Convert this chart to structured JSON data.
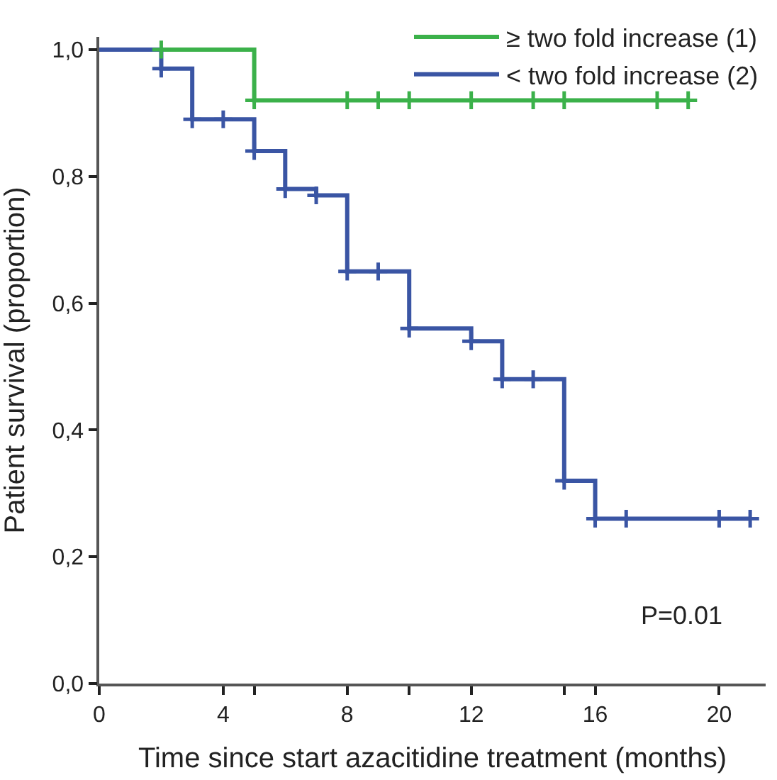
{
  "chart_data": {
    "type": "step",
    "xlabel": "Time since start azacitidine treatment (months)",
    "ylabel": "Patient survival (proportion)",
    "series": [
      {
        "name": "≥ two fold increase (1)",
        "marker": "none",
        "color": "#3bb14a",
        "x": [
          0,
          5,
          19
        ],
        "values": [
          1.0,
          0.92,
          0.92
        ]
      },
      {
        "name": "< two fold increase (2)",
        "marker": "none",
        "color": "#3a55a4",
        "x": [
          0,
          2,
          3,
          5,
          6,
          7,
          8,
          10,
          12,
          13,
          15,
          16,
          21
        ],
        "values": [
          1.0,
          0.97,
          0.89,
          0.84,
          0.78,
          0.77,
          0.65,
          0.56,
          0.54,
          0.48,
          0.32,
          0.26,
          0.26
        ]
      },
      {
        "type": "scatter",
        "marker": "cross",
        "color": "#3bb14a",
        "x": [
          2,
          5,
          8,
          9,
          10,
          12,
          14,
          15,
          18,
          19
        ],
        "values": [
          1.0,
          0.92,
          0.92,
          0.92,
          0.92,
          0.92,
          0.92,
          0.92,
          0.92,
          0.92
        ]
      },
      {
        "type": "scatter",
        "marker": "cross",
        "color": "#3a55a4",
        "x": [
          2,
          3,
          4,
          5,
          6,
          7,
          8,
          9,
          10,
          12,
          13,
          14,
          15,
          16,
          17,
          20,
          21
        ],
        "values": [
          0.97,
          0.89,
          0.89,
          0.84,
          0.78,
          0.77,
          0.65,
          0.65,
          0.56,
          0.54,
          0.48,
          0.48,
          0.32,
          0.26,
          0.26,
          0.26,
          0.26
        ]
      }
    ],
    "xlim": [
      0,
      21.5
    ],
    "xticks": [
      0,
      4,
      8,
      12,
      16,
      20,
      {
        "value": 5,
        "label": null
      },
      {
        "value": 10,
        "label": null
      },
      {
        "value": 15,
        "label": null
      }
    ],
    "ylim": [
      0,
      1.02
    ],
    "yticks": [
      {
        "value": 0,
        "label": "0,0"
      },
      {
        "value": 0.2,
        "label": "0,2"
      },
      {
        "value": 0.4,
        "label": "0,4"
      },
      {
        "value": 0.6,
        "label": "0,6"
      },
      {
        "value": 0.8,
        "label": "0,8"
      },
      {
        "value": 1.0,
        "label": "1,0"
      }
    ],
    "annotations": [
      "P=0.01"
    ],
    "legend": "top right"
  }
}
